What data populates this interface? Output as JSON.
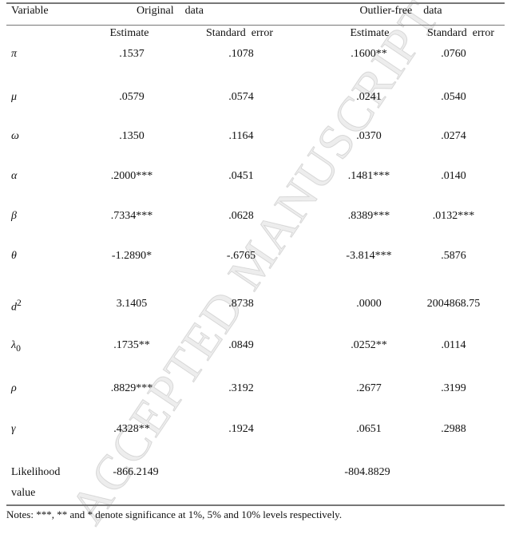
{
  "header": {
    "variable": "Variable",
    "original": "Original    data",
    "outlier_free": "Outlier-free    data",
    "estimate": "Estimate",
    "standard_error": "Standard  error"
  },
  "rows": [
    {
      "var": "π",
      "sub": "",
      "orig_est": ".1537",
      "orig_se": ".1078",
      "of_est": ".1600**",
      "of_se": ".0760"
    },
    {
      "var": "μ",
      "sub": "",
      "orig_est": ".0579",
      "orig_se": ".0574",
      "of_est": ".0241",
      "of_se": ".0540"
    },
    {
      "var": "ω",
      "sub": "",
      "orig_est": ".1350",
      "orig_se": ".1164",
      "of_est": ".0370",
      "of_se": ".0274"
    },
    {
      "var": "α",
      "sub": "",
      "orig_est": ".2000***",
      "orig_se": ".0451",
      "of_est": ".1481***",
      "of_se": ".0140"
    },
    {
      "var": "β",
      "sub": "",
      "orig_est": ".7334***",
      "orig_se": ".0628",
      "of_est": ".8389***",
      "of_se": ".0132***"
    },
    {
      "var": "θ",
      "sub": "",
      "orig_est": "-1.2890*",
      "orig_se": "-.6765",
      "of_est": "-3.814***",
      "of_se": ".5876"
    },
    {
      "var": "d",
      "sup": "2",
      "orig_est": "3.1405",
      "orig_se": ".8738",
      "of_est": ".0000",
      "of_se": "2004868.75"
    },
    {
      "var": "λ",
      "sub": "0",
      "orig_est": ".1735**",
      "orig_se": ".0849",
      "of_est": ".0252**",
      "of_se": ".0114"
    },
    {
      "var": "ρ",
      "sub": "",
      "orig_est": ".8829***",
      "orig_se": ".3192",
      "of_est": ".2677",
      "of_se": ".3199"
    },
    {
      "var": "γ",
      "sub": "",
      "orig_est": ".4328**",
      "orig_se": ".1924",
      "of_est": ".0651",
      "of_se": ".2988"
    }
  ],
  "likelihood": {
    "label_line1": "Likelihood",
    "label_line2": "value",
    "orig": "-866.2149",
    "of": "-804.8829"
  },
  "notes": "Notes: ***, ** and * denote significance at 1%, 5% and 10% levels respectively.",
  "watermark": "ACCEPTED MANUSCRIPT"
}
